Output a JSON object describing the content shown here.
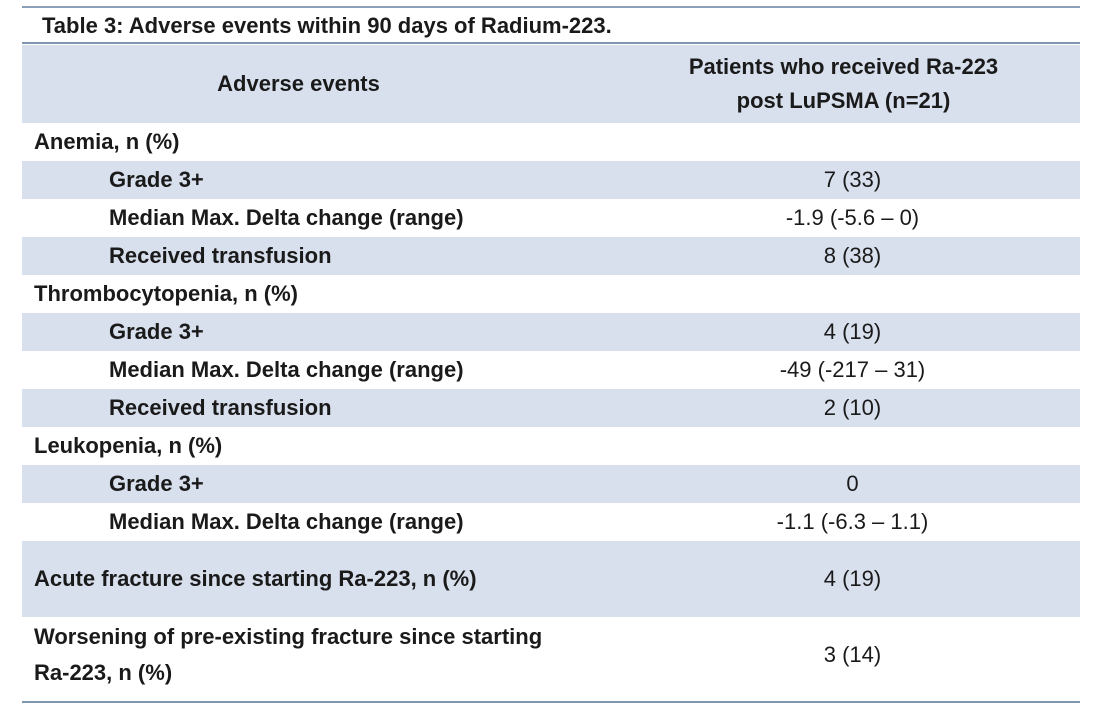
{
  "caption": "Table 3: Adverse events within 90 days of Radium-223.",
  "header": {
    "col1": "Adverse events",
    "col2_line1": "Patients who received Ra-223",
    "col2_line2": "post LuPSMA (n=21)"
  },
  "rows": [
    {
      "label": "Anemia, n (%)",
      "value": ""
    },
    {
      "label": "Grade 3+",
      "value": "7 (33)"
    },
    {
      "label": "Median Max. Delta change (range)",
      "value": "-1.9 (-5.6 – 0)"
    },
    {
      "label": "Received transfusion",
      "value": "8 (38)"
    },
    {
      "label": "Thrombocytopenia, n (%)",
      "value": ""
    },
    {
      "label": "Grade 3+",
      "value": "4 (19)"
    },
    {
      "label": "Median Max. Delta change (range)",
      "value": "-49 (-217 – 31)"
    },
    {
      "label": "Received transfusion",
      "value": "2 (10)"
    },
    {
      "label": "Leukopenia, n (%)",
      "value": ""
    },
    {
      "label": "Grade 3+",
      "value": "0"
    },
    {
      "label": "Median Max. Delta change (range)",
      "value": "-1.1 (-6.3 – 1.1)"
    },
    {
      "label": "Acute fracture since starting Ra-223, n (%)",
      "value": "4 (19)"
    },
    {
      "label": "Worsening of pre-existing fracture since starting Ra-223, n (%)",
      "value": "3 (14)"
    }
  ]
}
